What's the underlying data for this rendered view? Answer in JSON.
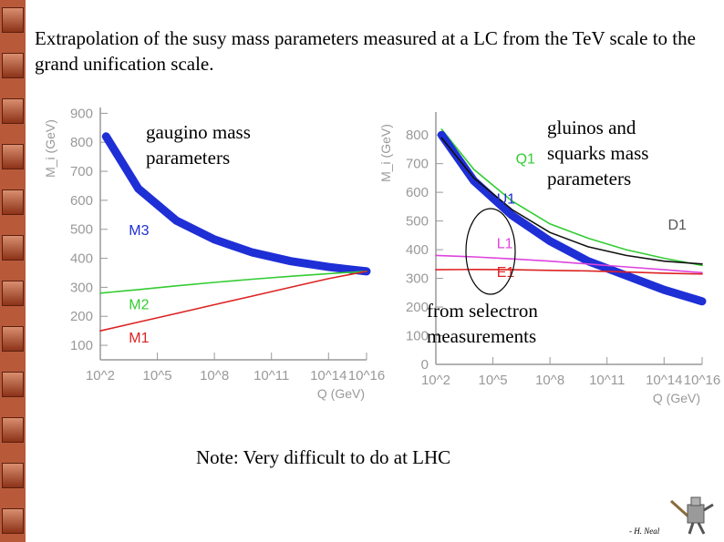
{
  "title": "Extrapolation of the susy mass parameters measured at a LC from the TeV scale to the grand unification scale.",
  "note": "Note: Very difficult to do at LHC",
  "credit": "- H. Neal",
  "annotations": {
    "gaugino": "gaugino mass parameters",
    "gluino": "gluinos and squarks mass parameters",
    "selectron": "from selectron measurements"
  },
  "chart_data": [
    {
      "type": "line",
      "ylabel": "M_i (GeV)",
      "xlabel": "Q (GeV)",
      "x_scale": "log",
      "xlim_exp": [
        2,
        16
      ],
      "ylim": [
        50,
        920
      ],
      "x_ticks": [
        "10^2",
        "10^5",
        "10^8",
        "10^11",
        "10^14",
        "10^16"
      ],
      "x_tick_exps": [
        2,
        5,
        8,
        11,
        14,
        16
      ],
      "y_ticks": [
        100,
        200,
        300,
        400,
        500,
        600,
        700,
        800,
        900
      ],
      "series": [
        {
          "name": "M3",
          "color": "#1f2fd6",
          "band": true,
          "x_exp": [
            2.3,
            4,
            6,
            8,
            10,
            12,
            14,
            16
          ],
          "y": [
            820,
            640,
            530,
            465,
            420,
            390,
            370,
            355
          ]
        },
        {
          "name": "M2",
          "color": "#33cc33",
          "band": false,
          "x_exp": [
            2,
            4,
            6,
            8,
            10,
            12,
            14,
            16
          ],
          "y": [
            280,
            292,
            305,
            317,
            328,
            338,
            347,
            355
          ]
        },
        {
          "name": "M1",
          "color": "#dd2222",
          "band": false,
          "x_exp": [
            2,
            4,
            6,
            8,
            10,
            12,
            14,
            16
          ],
          "y": [
            150,
            180,
            210,
            240,
            270,
            300,
            330,
            355
          ]
        }
      ]
    },
    {
      "type": "line",
      "ylabel": "M_i (GeV)",
      "xlabel": "Q (GeV)",
      "x_scale": "log",
      "xlim_exp": [
        2,
        16
      ],
      "ylim": [
        0,
        880
      ],
      "x_ticks": [
        "10^2",
        "10^5",
        "10^8",
        "10^11",
        "10^14",
        "10^16"
      ],
      "x_tick_exps": [
        2,
        5,
        8,
        11,
        14,
        16
      ],
      "y_ticks": [
        0,
        100,
        200,
        300,
        400,
        500,
        600,
        700,
        800
      ],
      "series": [
        {
          "name": "Q1",
          "color": "#33cc33",
          "band": false,
          "x_exp": [
            2.3,
            4,
            6,
            8,
            10,
            12,
            14,
            16
          ],
          "y": [
            820,
            680,
            570,
            490,
            440,
            400,
            370,
            345
          ]
        },
        {
          "name": "U1",
          "color": "#1f2fd6",
          "band": true,
          "x_exp": [
            2.3,
            4,
            6,
            8,
            10,
            12,
            14,
            16
          ],
          "y": [
            800,
            640,
            520,
            430,
            360,
            310,
            260,
            220
          ]
        },
        {
          "name": "D1",
          "color": "#111111",
          "band": false,
          "x_exp": [
            2.3,
            4,
            6,
            8,
            10,
            12,
            14,
            16
          ],
          "y": [
            790,
            650,
            540,
            460,
            410,
            380,
            360,
            350
          ]
        },
        {
          "name": "L1",
          "color": "#dd44dd",
          "band": false,
          "x_exp": [
            2,
            4,
            6,
            8,
            10,
            12,
            14,
            16
          ],
          "y": [
            380,
            375,
            368,
            360,
            350,
            340,
            330,
            320
          ]
        },
        {
          "name": "E1",
          "color": "#dd2222",
          "band": false,
          "x_exp": [
            2,
            4,
            6,
            8,
            10,
            12,
            14,
            16
          ],
          "y": [
            330,
            331,
            330,
            328,
            326,
            322,
            318,
            315
          ]
        }
      ]
    }
  ]
}
